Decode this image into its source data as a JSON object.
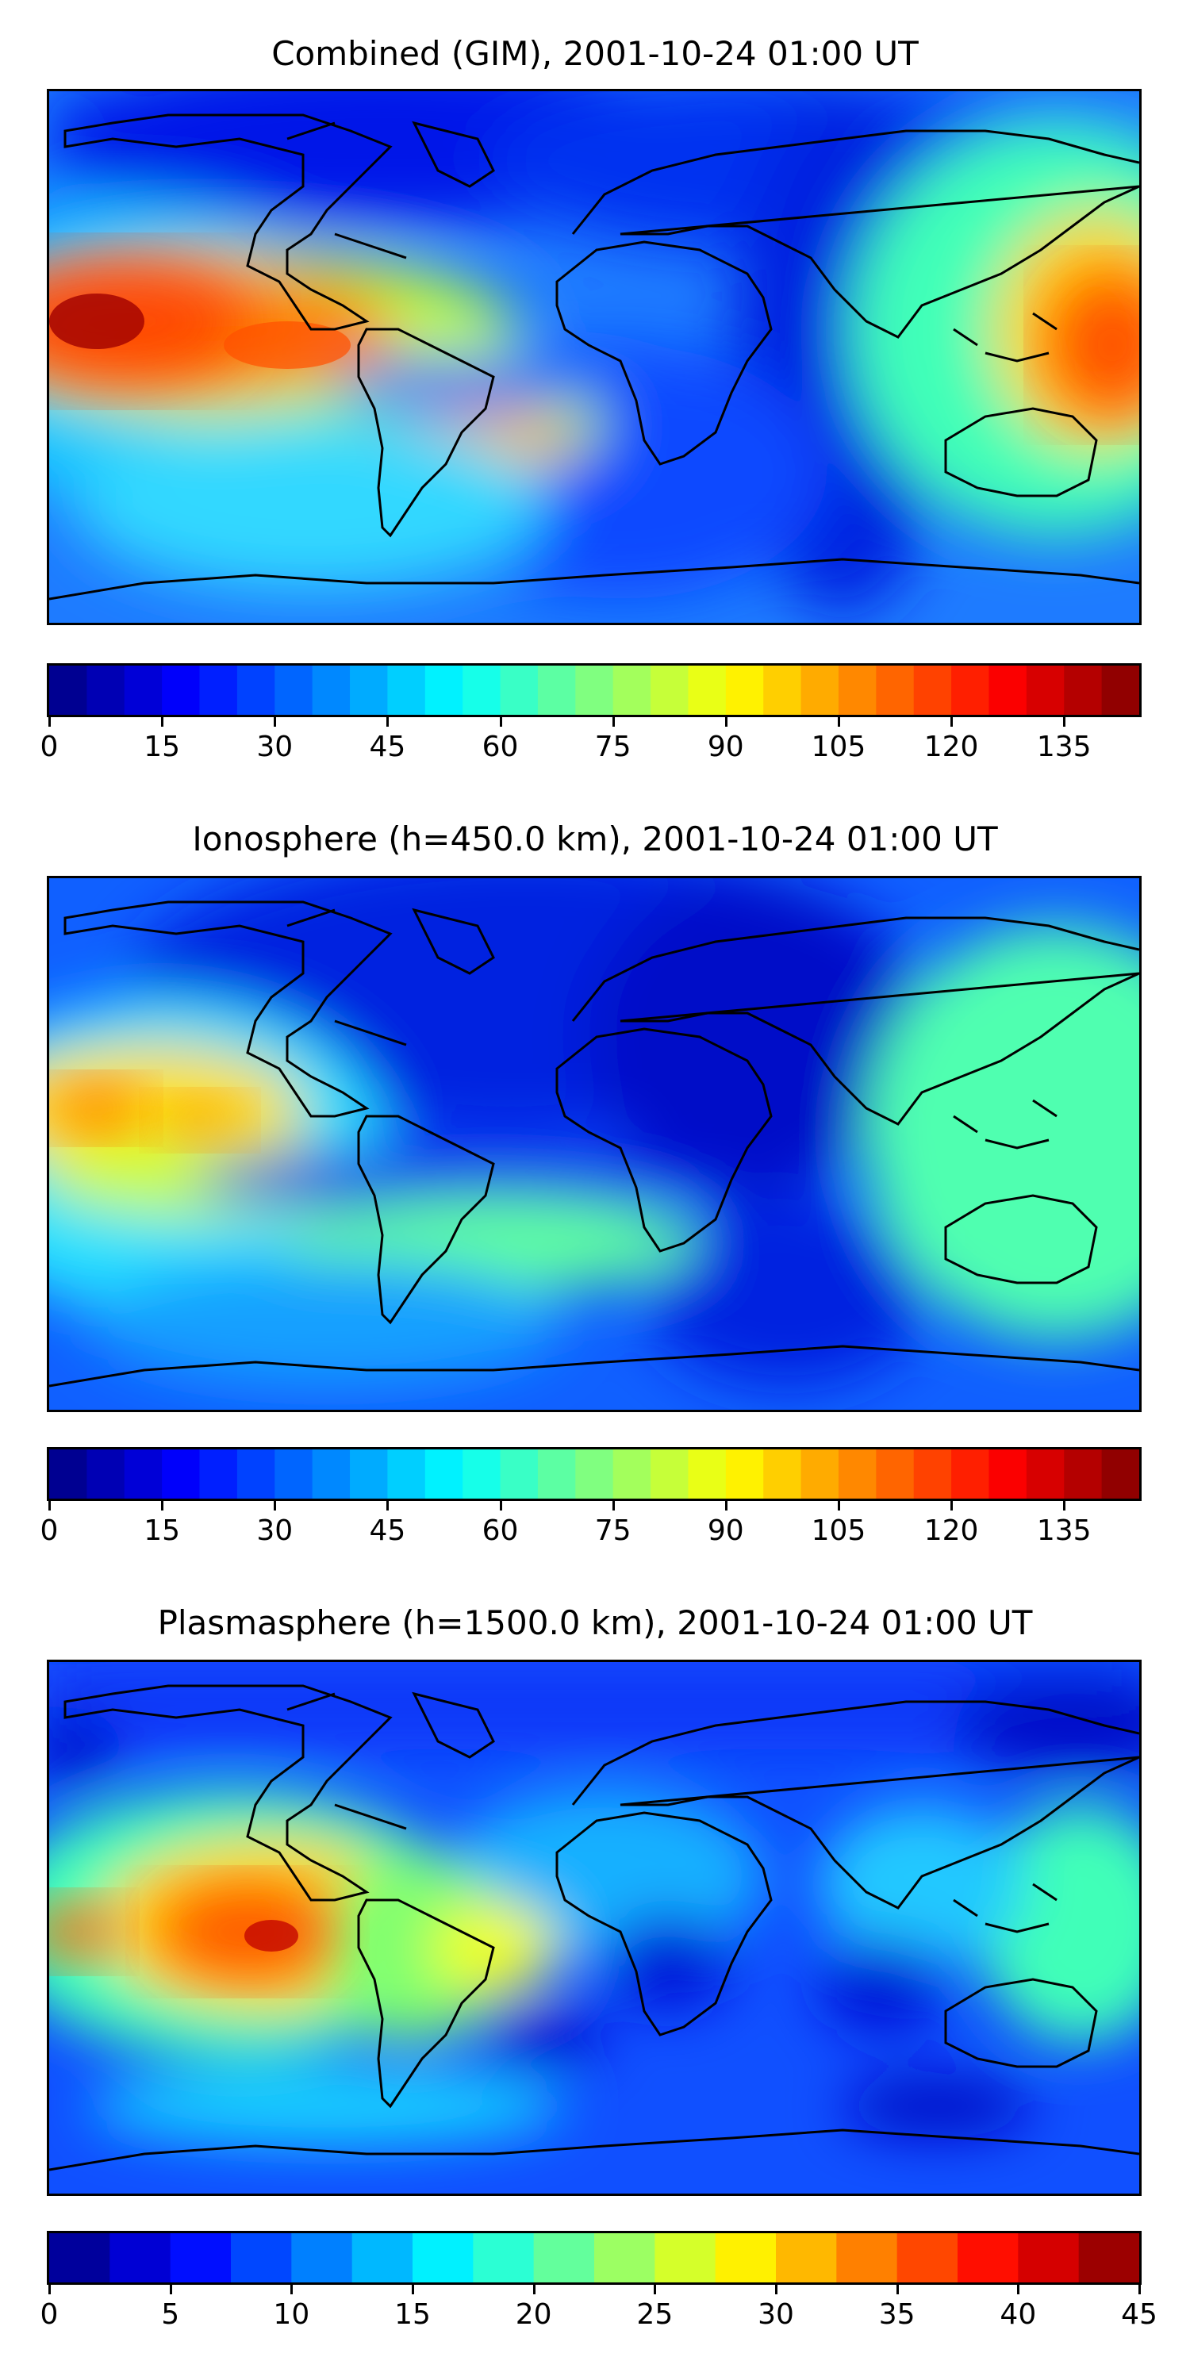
{
  "panels": [
    {
      "title": "Combined (GIM), 2001-10-24 01:00 UT",
      "colorbar": {
        "min": 0,
        "max": 145,
        "levels": 29,
        "ticks": [
          "0",
          "15",
          "30",
          "45",
          "60",
          "75",
          "90",
          "105",
          "120",
          "135"
        ]
      }
    },
    {
      "title": "Ionosphere  (h=450.0 km), 2001-10-24 01:00 UT",
      "colorbar": {
        "min": 0,
        "max": 145,
        "levels": 29,
        "ticks": [
          "0",
          "15",
          "30",
          "45",
          "60",
          "75",
          "90",
          "105",
          "120",
          "135"
        ]
      }
    },
    {
      "title": "Plasmasphere (h=1500.0 km), 2001-10-24 01:00 UT",
      "colorbar": {
        "min": 0,
        "max": 45,
        "levels": 18,
        "ticks": [
          "0",
          "5",
          "10",
          "15",
          "20",
          "25",
          "30",
          "35",
          "40",
          "45"
        ]
      }
    }
  ],
  "colormap": "jet"
}
